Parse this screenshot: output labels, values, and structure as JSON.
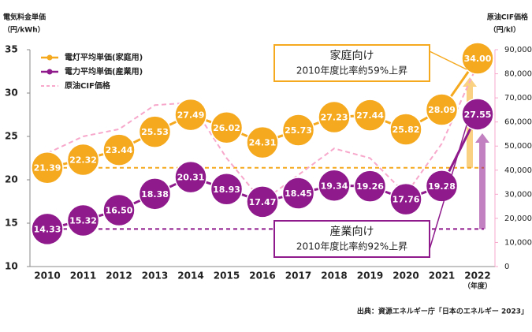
{
  "chart_data": {
    "type": "line",
    "y_label": "電気料金単価",
    "y_unit": "（円/kWh）",
    "y2_label": "原油CIF価格",
    "y2_unit": "（円/kl）",
    "x_unit": "（年度）",
    "source": "出典：資源エネルギー庁「日本のエネルギー 2023」",
    "categories": [
      "2010",
      "2011",
      "2012",
      "2013",
      "2014",
      "2015",
      "2016",
      "2017",
      "2018",
      "2019",
      "2020",
      "2021",
      "2022"
    ],
    "series": [
      {
        "name": "電灯平均単価(家庭用)",
        "color": "#f5a91e",
        "values": [
          21.39,
          22.32,
          23.44,
          25.53,
          27.49,
          26.02,
          24.31,
          25.73,
          27.23,
          27.44,
          25.82,
          28.09,
          34.0
        ],
        "value_labels": [
          "21.39",
          "22.32",
          "23.44",
          "25.53",
          "27.49",
          "26.02",
          "24.31",
          "25.73",
          "27.23",
          "27.44",
          "25.82",
          "28.09",
          "34.00"
        ]
      },
      {
        "name": "電力平均単価(産業用)",
        "color": "#8f1a8c",
        "values": [
          14.33,
          15.32,
          16.5,
          18.38,
          20.31,
          18.93,
          17.47,
          18.45,
          19.34,
          19.26,
          17.76,
          19.28,
          27.55
        ],
        "value_labels": [
          "14.33",
          "15.32",
          "16.50",
          "18.38",
          "20.31",
          "18.93",
          "17.47",
          "18.45",
          "19.34",
          "19.26",
          "17.76",
          "19.28",
          "27.55"
        ]
      },
      {
        "name": "原油CIF価格",
        "color": "#f7a8cb",
        "axis": "y2",
        "dashed": true,
        "values": [
          47000,
          54000,
          57000,
          67000,
          68000,
          45000,
          27000,
          38000,
          49000,
          45000,
          30000,
          51000,
          84000
        ]
      }
    ],
    "ylim": [
      10,
      35
    ],
    "yticks": [
      10,
      15,
      20,
      25,
      30,
      35
    ],
    "y2lim": [
      0,
      90000
    ],
    "y2ticks": [
      0,
      {
        "value": 10000,
        "label": "10,000"
      },
      {
        "value": 20000,
        "label": "20,000"
      },
      {
        "value": 30000,
        "label": "30,000"
      },
      {
        "value": 40000,
        "label": "40,000"
      },
      {
        "value": 50000,
        "label": "50,000"
      },
      {
        "value": 60000,
        "label": "60,000"
      },
      {
        "value": 70000,
        "label": "70,000"
      },
      {
        "value": 80000,
        "label": "80,000"
      },
      {
        "value": 90000,
        "label": "90,000"
      }
    ],
    "grid": false,
    "legend": "top-left",
    "annotations": [
      {
        "series": 0,
        "title": "家庭向け",
        "text": "2010年度比率約59%上昇"
      },
      {
        "series": 1,
        "title": "産業向け",
        "text": "2010年度比率約92%上昇"
      }
    ]
  }
}
